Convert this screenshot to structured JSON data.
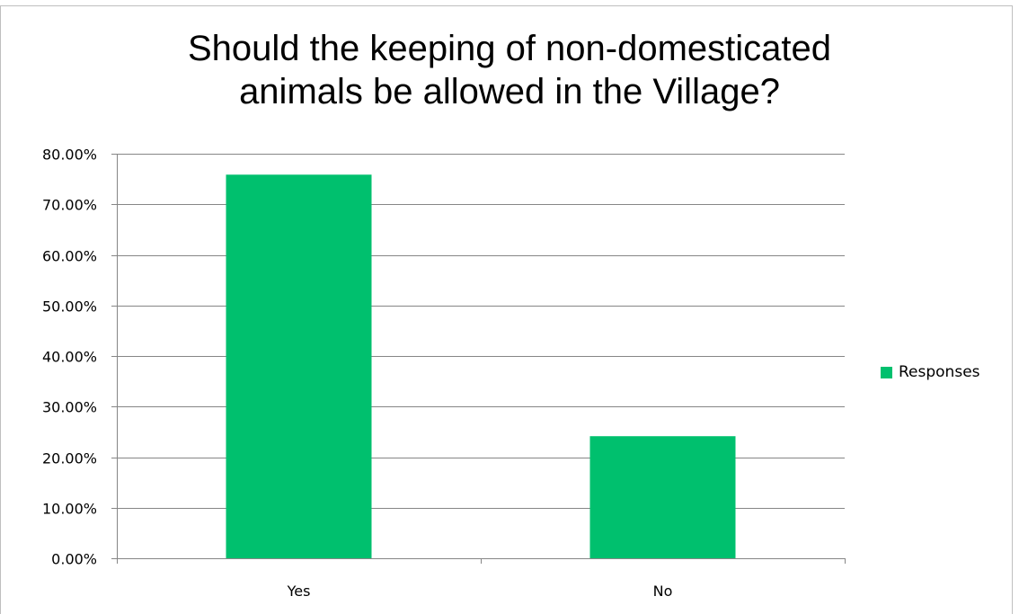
{
  "chart_data": {
    "type": "bar",
    "title_lines": [
      "Should the keeping of non-domesticated",
      "animals be allowed in the Village?"
    ],
    "categories": [
      "Yes",
      "No"
    ],
    "series": [
      {
        "name": "Responses",
        "values": [
          75.86,
          24.14
        ],
        "color": "#00C06E"
      }
    ],
    "yticks": [
      "0.00%",
      "10.00%",
      "20.00%",
      "30.00%",
      "40.00%",
      "50.00%",
      "60.00%",
      "70.00%",
      "80.00%"
    ],
    "ylim": [
      0,
      80
    ],
    "ystep": 10,
    "grid": true,
    "legend_position": "right"
  }
}
